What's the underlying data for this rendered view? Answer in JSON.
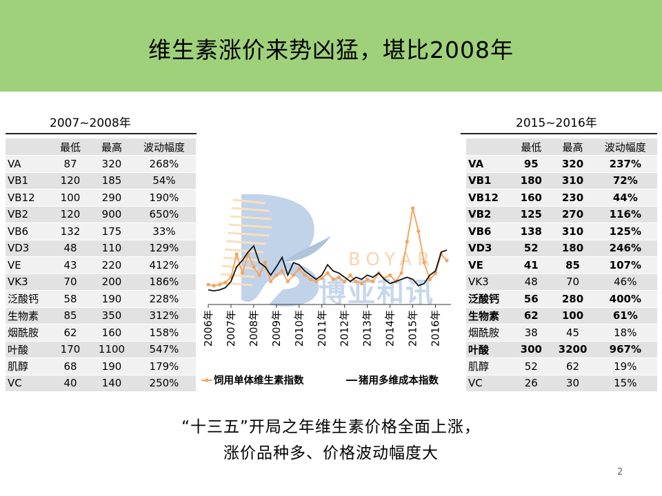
{
  "title": "维生素涨价来势凶猛，堪比2008年",
  "left_table": {
    "caption": "2007~2008年",
    "headers": [
      "",
      "最低",
      "最高",
      "波动幅度"
    ],
    "rows": [
      {
        "name": "VA",
        "low": "87",
        "high": "320",
        "range": "268%",
        "bold": false
      },
      {
        "name": "VB1",
        "low": "120",
        "high": "185",
        "range": "54%",
        "bold": false
      },
      {
        "name": "VB12",
        "low": "100",
        "high": "290",
        "range": "190%",
        "bold": false
      },
      {
        "name": "VB2",
        "low": "120",
        "high": "900",
        "range": "650%",
        "bold": false
      },
      {
        "name": "VB6",
        "low": "132",
        "high": "175",
        "range": "33%",
        "bold": false
      },
      {
        "name": "VD3",
        "low": "48",
        "high": "110",
        "range": "129%",
        "bold": false
      },
      {
        "name": "VE",
        "low": "43",
        "high": "220",
        "range": "412%",
        "bold": false
      },
      {
        "name": "VK3",
        "low": "70",
        "high": "200",
        "range": "186%",
        "bold": false
      },
      {
        "name": "泛酸钙",
        "low": "58",
        "high": "190",
        "range": "228%",
        "bold": false
      },
      {
        "name": "生物素",
        "low": "85",
        "high": "350",
        "range": "312%",
        "bold": false
      },
      {
        "name": "烟酰胺",
        "low": "62",
        "high": "160",
        "range": "158%",
        "bold": false
      },
      {
        "name": "叶酸",
        "low": "170",
        "high": "1100",
        "range": "547%",
        "bold": false
      },
      {
        "name": "肌醇",
        "low": "68",
        "high": "190",
        "range": "179%",
        "bold": false
      },
      {
        "name": "VC",
        "low": "40",
        "high": "140",
        "range": "250%",
        "bold": false
      }
    ]
  },
  "right_table": {
    "caption": "2015~2016年",
    "headers": [
      "",
      "最低",
      "最高",
      "波动幅度"
    ],
    "rows": [
      {
        "name": "VA",
        "low": "95",
        "high": "320",
        "range": "237%",
        "bold": true
      },
      {
        "name": "VB1",
        "low": "180",
        "high": "310",
        "range": "72%",
        "bold": true
      },
      {
        "name": "VB12",
        "low": "160",
        "high": "230",
        "range": "44%",
        "bold": true
      },
      {
        "name": "VB2",
        "low": "125",
        "high": "270",
        "range": "116%",
        "bold": true
      },
      {
        "name": "VB6",
        "low": "138",
        "high": "310",
        "range": "125%",
        "bold": true
      },
      {
        "name": "VD3",
        "low": "52",
        "high": "180",
        "range": "246%",
        "bold": true
      },
      {
        "name": "VE",
        "low": "41",
        "high": "85",
        "range": "107%",
        "bold": true
      },
      {
        "name": "VK3",
        "low": "48",
        "high": "70",
        "range": "46%",
        "bold": false
      },
      {
        "name": "泛酸钙",
        "low": "56",
        "high": "280",
        "range": "400%",
        "bold": true
      },
      {
        "name": "生物素",
        "low": "62",
        "high": "100",
        "range": "61%",
        "bold": true
      },
      {
        "name": "烟酰胺",
        "low": "38",
        "high": "45",
        "range": "18%",
        "bold": false
      },
      {
        "name": "叶酸",
        "low": "300",
        "high": "3200",
        "range": "967%",
        "bold": true
      },
      {
        "name": "肌醇",
        "low": "52",
        "high": "62",
        "range": "19%",
        "bold": false
      },
      {
        "name": "VC",
        "low": "26",
        "high": "30",
        "range": "15%",
        "bold": false
      }
    ]
  },
  "watermark": {
    "text_latin": "BOYAR",
    "text_cn": "博亚和讯"
  },
  "chart_data": {
    "type": "line",
    "x": [
      2006,
      2006.25,
      2006.5,
      2006.75,
      2007,
      2007.25,
      2007.5,
      2007.75,
      2008,
      2008.25,
      2008.5,
      2008.75,
      2009,
      2009.25,
      2009.5,
      2009.75,
      2010,
      2010.25,
      2010.5,
      2010.75,
      2011,
      2011.25,
      2011.5,
      2011.75,
      2012,
      2012.25,
      2012.5,
      2012.75,
      2013,
      2013.25,
      2013.5,
      2013.75,
      2014,
      2014.25,
      2014.5,
      2014.75,
      2015,
      2015.25,
      2015.5,
      2015.75,
      2016,
      2016.25,
      2016.5
    ],
    "x_ticks": [
      "2006年",
      "2007年",
      "2008年",
      "2009年",
      "2010年",
      "2011年",
      "2012年",
      "2013年",
      "2014年",
      "2015年",
      "2016年"
    ],
    "ylim": [
      0,
      100
    ],
    "grid": false,
    "legend_position": "bottom",
    "series": [
      {
        "name": "饲用单体维生素指数",
        "color": "#f4a460",
        "values": [
          19,
          18,
          19,
          21,
          26,
          48,
          30,
          48,
          36,
          28,
          40,
          22,
          28,
          32,
          22,
          28,
          34,
          28,
          24,
          22,
          25,
          30,
          24,
          26,
          22,
          28,
          22,
          20,
          24,
          22,
          30,
          25,
          28,
          22,
          30,
          60,
          92,
          70,
          40,
          24,
          30,
          48,
          42
        ]
      },
      {
        "name": "猪用多维成本指数",
        "color": "#111111",
        "values": [
          14,
          13,
          14,
          16,
          22,
          36,
          42,
          50,
          56,
          40,
          36,
          28,
          36,
          45,
          28,
          40,
          38,
          32,
          28,
          24,
          28,
          38,
          32,
          30,
          26,
          22,
          26,
          24,
          28,
          26,
          30,
          24,
          20,
          22,
          24,
          26,
          24,
          18,
          20,
          28,
          32,
          50,
          52
        ]
      }
    ]
  },
  "footer": {
    "line1": "“十三五”开局之年维生素价格全面上涨，",
    "line2": "涨价品种多、价格波动幅度大"
  },
  "page_number": "2"
}
